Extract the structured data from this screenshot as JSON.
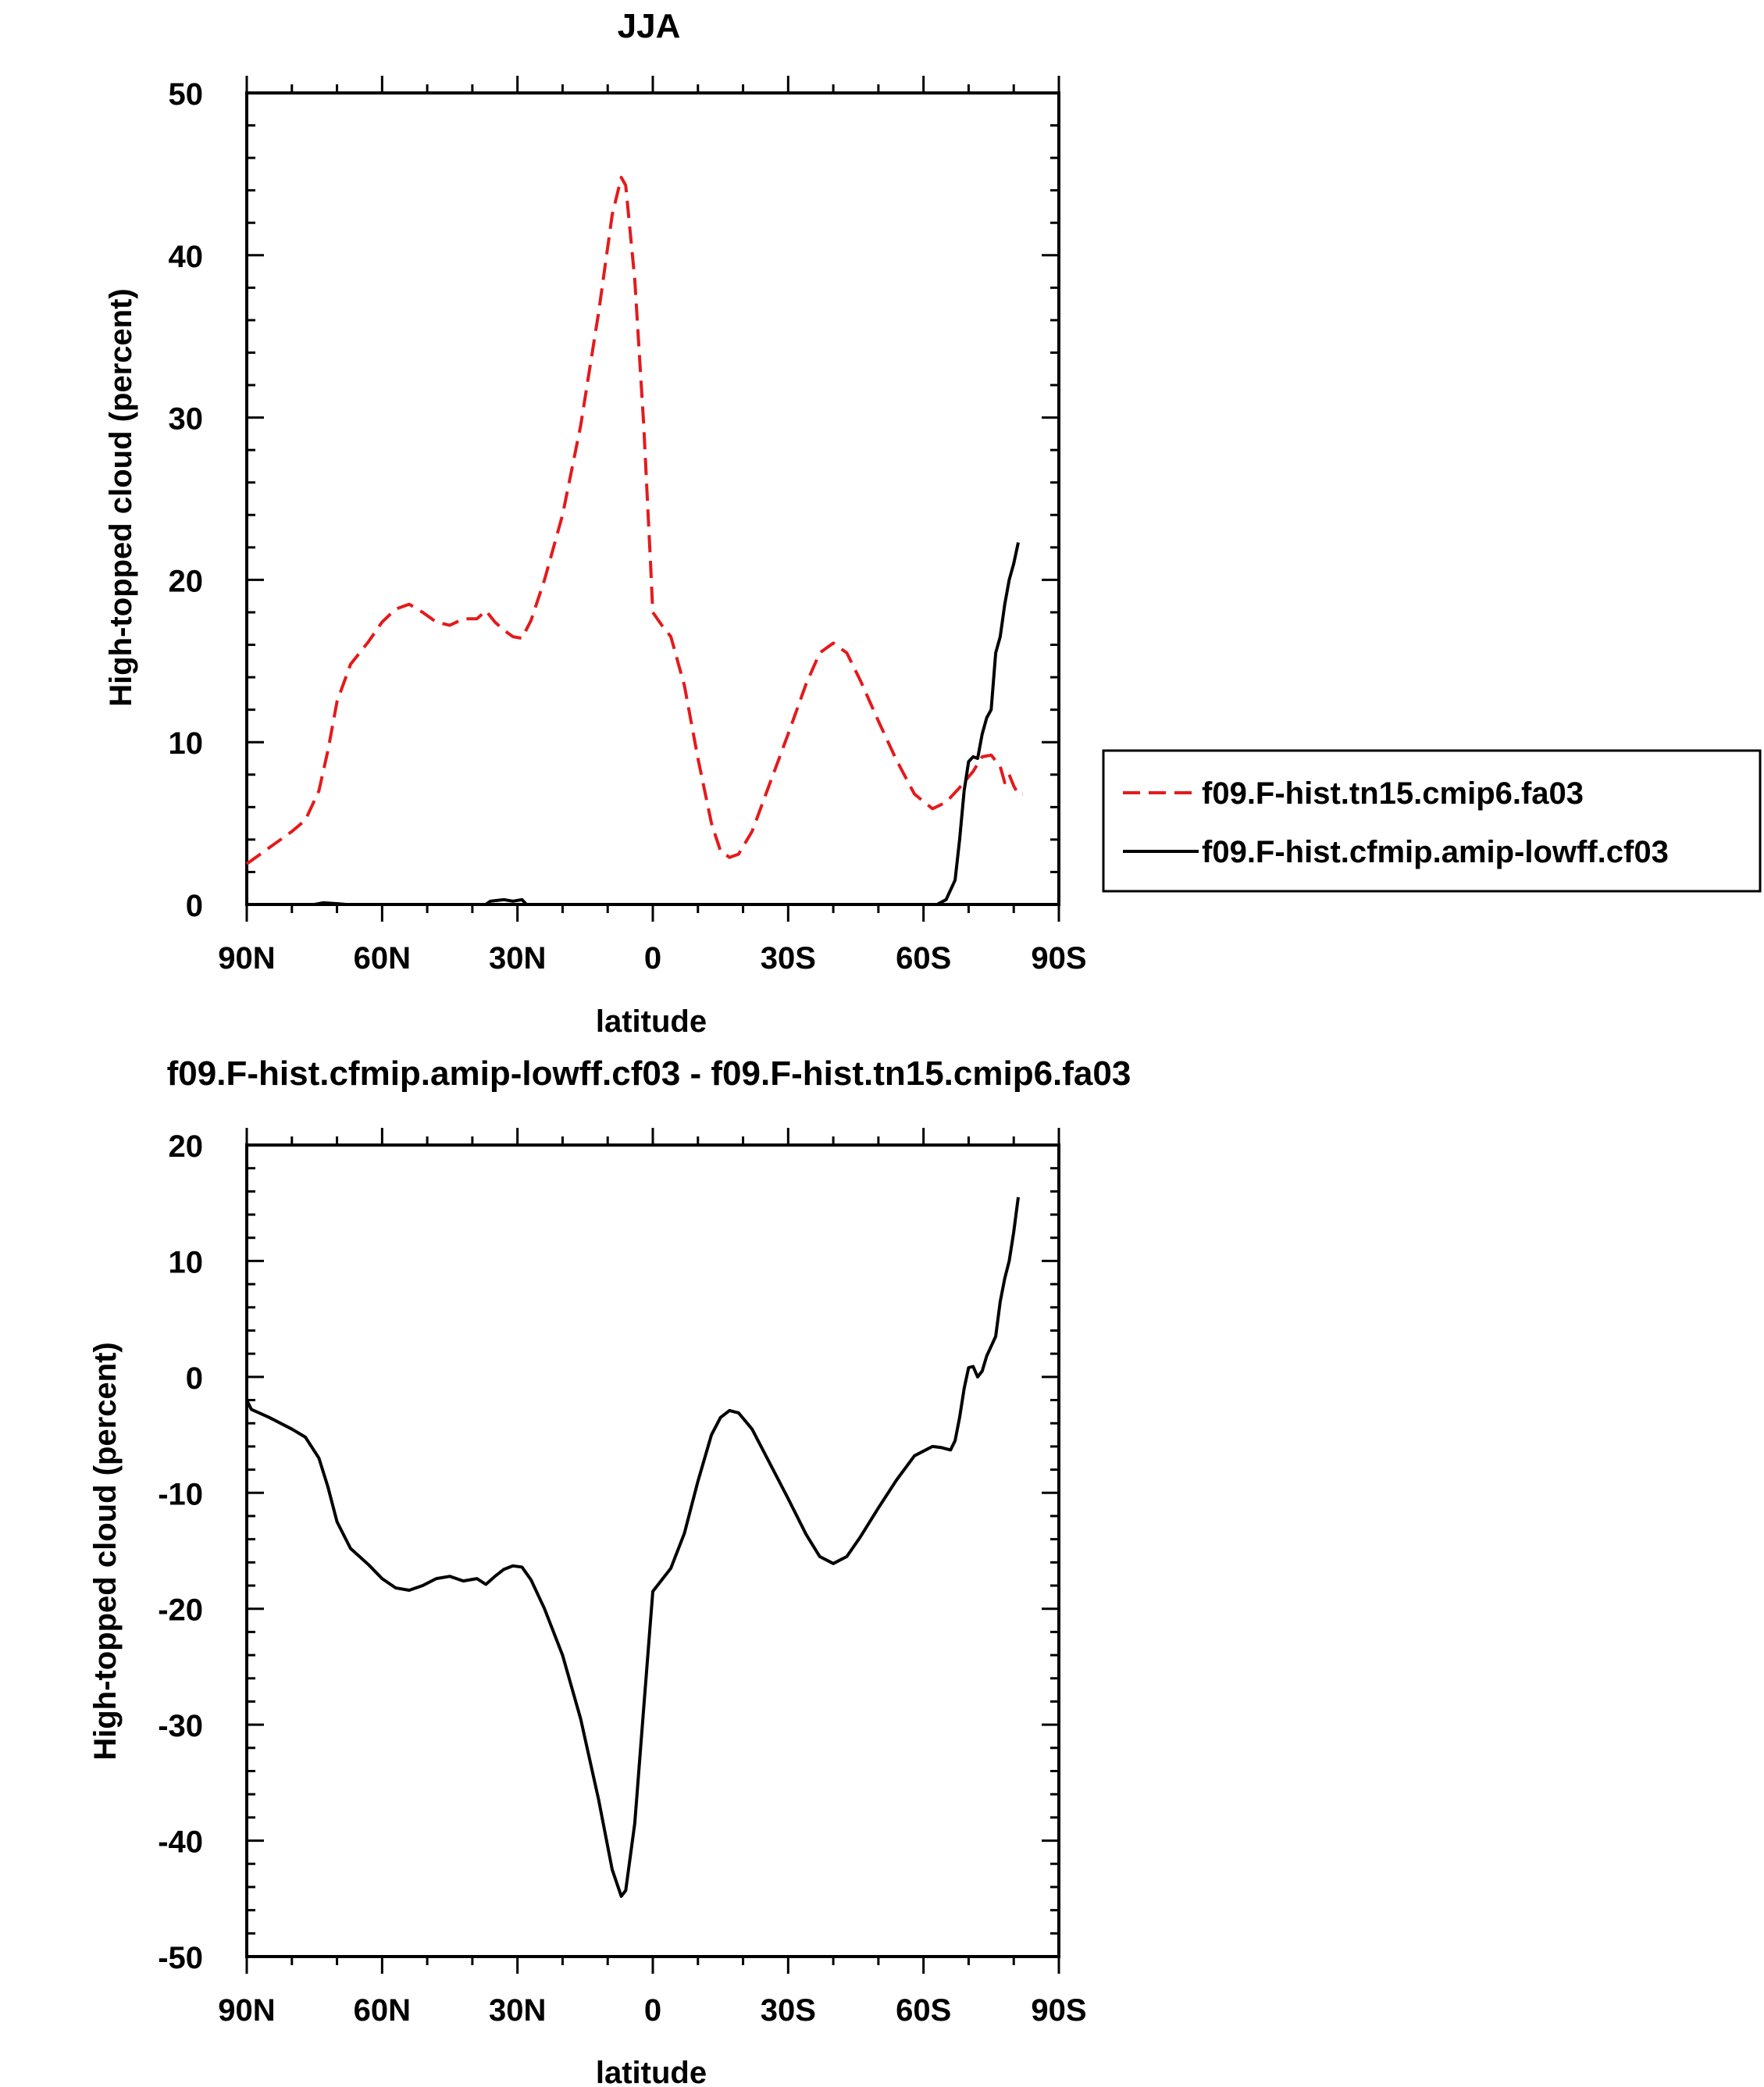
{
  "chart_data": [
    {
      "type": "line",
      "title": "JJA",
      "xlabel": "latitude",
      "ylabel": "High-topped cloud (percent)",
      "xlim": [
        90,
        -90
      ],
      "ylim": [
        0,
        50
      ],
      "xticks": [
        90,
        60,
        30,
        0,
        -30,
        -60,
        -90
      ],
      "xticklabels": [
        "90N",
        "60N",
        "30N",
        "0",
        "30S",
        "60S",
        "90S"
      ],
      "yticks": [
        0,
        10,
        20,
        30,
        40,
        50
      ],
      "yticklabels": [
        "0",
        "10",
        "20",
        "30",
        "40",
        "50"
      ],
      "legend_position": "right",
      "series": [
        {
          "name": "f09.F-hist.tn15.cmip6.fa03",
          "color": "#e41a1c",
          "dash": "dashed",
          "points": [
            [
              90,
              2.5
            ],
            [
              85,
              3.5
            ],
            [
              80,
              4.5
            ],
            [
              77,
              5.2
            ],
            [
              74,
              7.0
            ],
            [
              72,
              9.5
            ],
            [
              70,
              12.5
            ],
            [
              67,
              14.8
            ],
            [
              63,
              16.2
            ],
            [
              60,
              17.4
            ],
            [
              57,
              18.2
            ],
            [
              54,
              18.5
            ],
            [
              51,
              18.0
            ],
            [
              48,
              17.4
            ],
            [
              45,
              17.2
            ],
            [
              42,
              17.6
            ],
            [
              39,
              17.6
            ],
            [
              37,
              18.1
            ],
            [
              35,
              17.4
            ],
            [
              33,
              16.9
            ],
            [
              31,
              16.5
            ],
            [
              29,
              16.4
            ],
            [
              27,
              17.5
            ],
            [
              24,
              20.0
            ],
            [
              20,
              24.0
            ],
            [
              16,
              29.5
            ],
            [
              12,
              36.5
            ],
            [
              9,
              42.5
            ],
            [
              7,
              44.8
            ],
            [
              6,
              44.3
            ],
            [
              4,
              38.5
            ],
            [
              2,
              29.5
            ],
            [
              0.5,
              21.0
            ],
            [
              0,
              18.0
            ],
            [
              -2,
              17.2
            ],
            [
              -4,
              16.5
            ],
            [
              -7,
              13.5
            ],
            [
              -10,
              9.0
            ],
            [
              -13,
              5.0
            ],
            [
              -15,
              3.3
            ],
            [
              -17,
              2.9
            ],
            [
              -19,
              3.1
            ],
            [
              -22,
              4.5
            ],
            [
              -26,
              7.5
            ],
            [
              -30,
              10.5
            ],
            [
              -34,
              13.6
            ],
            [
              -37,
              15.5
            ],
            [
              -40,
              16.1
            ],
            [
              -43,
              15.5
            ],
            [
              -46,
              13.8
            ],
            [
              -50,
              11.3
            ],
            [
              -54,
              8.9
            ],
            [
              -58,
              6.8
            ],
            [
              -62,
              5.9
            ],
            [
              -65,
              6.3
            ],
            [
              -68,
              7.2
            ],
            [
              -71,
              8.2
            ],
            [
              -73,
              9.1
            ],
            [
              -75,
              9.2
            ],
            [
              -77,
              8.5
            ],
            [
              -78,
              7.5
            ],
            [
              -79,
              8.0
            ],
            [
              -80,
              7.3
            ],
            [
              -81,
              6.8
            ],
            [
              -82,
              6.8
            ]
          ]
        },
        {
          "name": "f09.F-hist.cfmip.amip-lowff.cf03",
          "color": "#000000",
          "dash": "solid",
          "points": [
            [
              90,
              0
            ],
            [
              75,
              0
            ],
            [
              73,
              0.1
            ],
            [
              70,
              0.05
            ],
            [
              68,
              0
            ],
            [
              37,
              0
            ],
            [
              36,
              0.2
            ],
            [
              33,
              0.3
            ],
            [
              31,
              0.2
            ],
            [
              29,
              0.3
            ],
            [
              28,
              0
            ],
            [
              -63,
              0
            ],
            [
              -65,
              0.3
            ],
            [
              -67,
              1.5
            ],
            [
              -68,
              4.0
            ],
            [
              -69,
              7.0
            ],
            [
              -70,
              8.8
            ],
            [
              -71,
              9.1
            ],
            [
              -72,
              9.0
            ],
            [
              -73,
              10.5
            ],
            [
              -74,
              11.5
            ],
            [
              -75,
              12.0
            ],
            [
              -76,
              15.5
            ],
            [
              -77,
              16.5
            ],
            [
              -78,
              18.5
            ],
            [
              -79,
              20.0
            ],
            [
              -80,
              21.0
            ],
            [
              -81,
              22.3
            ]
          ]
        }
      ]
    },
    {
      "type": "line",
      "title": "f09.F-hist.cfmip.amip-lowff.cf03 - f09.F-hist.tn15.cmip6.fa03",
      "xlabel": "latitude",
      "ylabel": "High-topped cloud (percent)",
      "xlim": [
        90,
        -90
      ],
      "ylim": [
        -50,
        20
      ],
      "xticks": [
        90,
        60,
        30,
        0,
        -30,
        -60,
        -90
      ],
      "xticklabels": [
        "90N",
        "60N",
        "30N",
        "0",
        "30S",
        "60S",
        "90S"
      ],
      "yticks": [
        -50,
        -40,
        -30,
        -20,
        -10,
        0,
        10,
        20
      ],
      "yticklabels": [
        "-50",
        "-40",
        "-30",
        "-20",
        "-10",
        "0",
        "10",
        "20"
      ],
      "series": [
        {
          "color": "#000000",
          "dash": "solid",
          "points": [
            [
              90,
              -2.0
            ],
            [
              89,
              -2.8
            ],
            [
              85,
              -3.5
            ],
            [
              80,
              -4.5
            ],
            [
              77,
              -5.2
            ],
            [
              74,
              -7.0
            ],
            [
              72,
              -9.5
            ],
            [
              70,
              -12.5
            ],
            [
              67,
              -14.8
            ],
            [
              63,
              -16.2
            ],
            [
              60,
              -17.4
            ],
            [
              57,
              -18.2
            ],
            [
              54,
              -18.4
            ],
            [
              51,
              -18.0
            ],
            [
              48,
              -17.4
            ],
            [
              45,
              -17.2
            ],
            [
              42,
              -17.6
            ],
            [
              39,
              -17.4
            ],
            [
              37,
              -17.9
            ],
            [
              35,
              -17.2
            ],
            [
              33,
              -16.6
            ],
            [
              31,
              -16.3
            ],
            [
              29,
              -16.4
            ],
            [
              27,
              -17.5
            ],
            [
              24,
              -20.0
            ],
            [
              20,
              -24.0
            ],
            [
              16,
              -29.5
            ],
            [
              12,
              -36.5
            ],
            [
              9,
              -42.5
            ],
            [
              7,
              -44.8
            ],
            [
              6,
              -44.3
            ],
            [
              4,
              -38.5
            ],
            [
              2,
              -28.5
            ],
            [
              0.5,
              -21.0
            ],
            [
              0,
              -18.5
            ],
            [
              -2,
              -17.5
            ],
            [
              -4,
              -16.5
            ],
            [
              -7,
              -13.5
            ],
            [
              -10,
              -9.0
            ],
            [
              -13,
              -5.0
            ],
            [
              -15,
              -3.5
            ],
            [
              -17,
              -2.9
            ],
            [
              -19,
              -3.1
            ],
            [
              -22,
              -4.5
            ],
            [
              -26,
              -7.5
            ],
            [
              -30,
              -10.5
            ],
            [
              -34,
              -13.6
            ],
            [
              -37,
              -15.5
            ],
            [
              -40,
              -16.1
            ],
            [
              -43,
              -15.5
            ],
            [
              -46,
              -13.8
            ],
            [
              -50,
              -11.3
            ],
            [
              -54,
              -8.9
            ],
            [
              -58,
              -6.8
            ],
            [
              -62,
              -6.0
            ],
            [
              -64,
              -6.1
            ],
            [
              -66,
              -6.3
            ],
            [
              -67,
              -5.5
            ],
            [
              -68,
              -3.5
            ],
            [
              -69,
              -1.0
            ],
            [
              -70,
              0.8
            ],
            [
              -71,
              0.9
            ],
            [
              -72,
              0.0
            ],
            [
              -73,
              0.5
            ],
            [
              -74,
              1.8
            ],
            [
              -76,
              3.5
            ],
            [
              -77,
              6.5
            ],
            [
              -78,
              8.5
            ],
            [
              -79,
              10.0
            ],
            [
              -80,
              12.5
            ],
            [
              -81,
              15.5
            ]
          ]
        }
      ]
    }
  ]
}
